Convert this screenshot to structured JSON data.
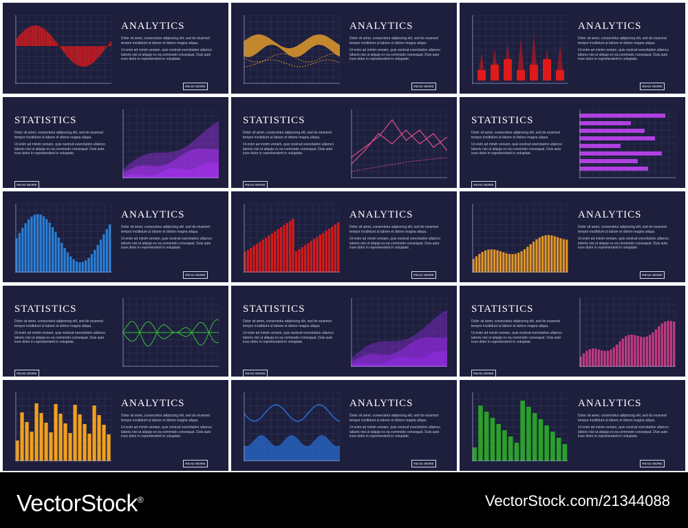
{
  "cards": [
    {
      "title": "ANALYTICS",
      "layout": "chart-left",
      "chart": "red-wave",
      "accent": "#e01a1a"
    },
    {
      "title": "ANALYTICS",
      "layout": "chart-left",
      "chart": "orange-band",
      "accent": "#e09a2a"
    },
    {
      "title": "ANALYTICS",
      "layout": "chart-left",
      "chart": "red-spikes",
      "accent": "#e01a1a"
    },
    {
      "title": "STATISTICS",
      "layout": "chart-right",
      "chart": "purple-area",
      "accent": "#9b30e0"
    },
    {
      "title": "STATISTICS",
      "layout": "chart-right",
      "chart": "pink-lines",
      "accent": "#e0508a"
    },
    {
      "title": "STATISTICS",
      "layout": "chart-right",
      "chart": "purple-hbars",
      "accent": "#b040e0"
    },
    {
      "title": "ANALYTICS",
      "layout": "chart-left",
      "chart": "blue-bars",
      "accent": "#2a7fd6"
    },
    {
      "title": "ANALYTICS",
      "layout": "chart-left",
      "chart": "red-bars",
      "accent": "#d61a1a"
    },
    {
      "title": "ANALYTICS",
      "layout": "chart-left",
      "chart": "orange-bars",
      "accent": "#e0952a"
    },
    {
      "title": "STATISTICS",
      "layout": "chart-right",
      "chart": "green-wave",
      "accent": "#3ac23a"
    },
    {
      "title": "STATISTICS",
      "layout": "chart-right",
      "chart": "violet-area",
      "accent": "#8a2ad6"
    },
    {
      "title": "STATISTICS",
      "layout": "chart-right",
      "chart": "magenta-bars",
      "accent": "#c03a80"
    },
    {
      "title": "ANALYTICS",
      "layout": "chart-left",
      "chart": "gold-bars",
      "accent": "#f0a020"
    },
    {
      "title": "ANALYTICS",
      "layout": "chart-left",
      "chart": "blue-waves",
      "accent": "#2a6fd6"
    },
    {
      "title": "ANALYTICS",
      "layout": "chart-left",
      "chart": "green-bars",
      "accent": "#2aa02a"
    }
  ],
  "body_text_1": "Dolor sit amet, consectetur adipiscing elit, sed do eiusmod tempor incididunt ut labore et dolore magna aliqua.",
  "body_text_2": "Ut enim ad minim veniam, quis nostrud exercitation ullamco laboris nisi ut aliquip ex ea commodo consequat. Duis aute irure dolor in reprehenderit in voluptate.",
  "button_label": "READ MORE",
  "footer": {
    "brand": "VectorStock",
    "brand_mark": "®",
    "credit": "VectorStock.com/21344088"
  },
  "colors": {
    "card_background": "#1d1f3d",
    "grid_line": "#3a3d66",
    "footer_background": "#000000"
  }
}
